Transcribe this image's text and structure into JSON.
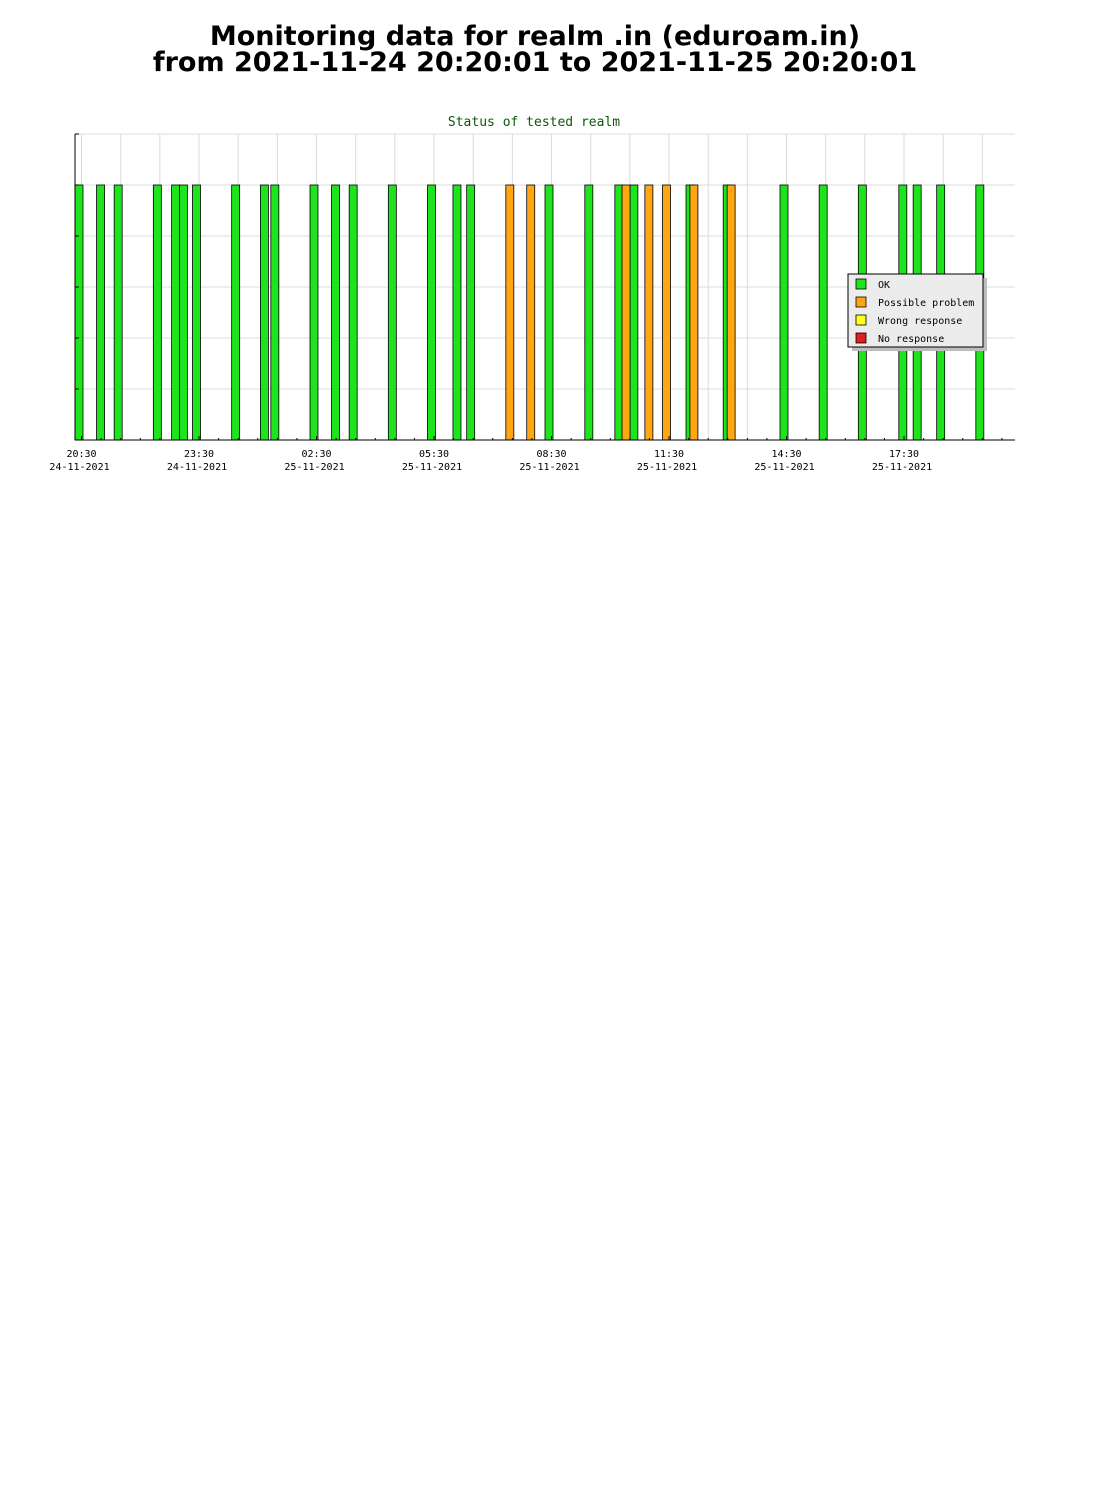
{
  "header": {
    "line1": "Monitoring data for realm .in  (eduroam.in)",
    "line2": "from 2021-11-24 20:20:01 to 2021-11-25 20:20:01"
  },
  "chart_data": {
    "type": "bar",
    "title": "Status of tested realm",
    "xlabel": "",
    "ylabel": "",
    "x_range": [
      "2021-11-24 20:20",
      "2021-11-25 20:20"
    ],
    "ylim": [
      0,
      6
    ],
    "grid": true,
    "legend_position": "right",
    "colors": {
      "OK": "#1ee41e",
      "Possible problem": "#ffa614",
      "Wrong response": "#ffff1e",
      "No response": "#e01e1e",
      "title": "#0a5a0a"
    },
    "x_ticks": [
      {
        "time": "20:30",
        "date": "24-11-2021"
      },
      {
        "time": "23:30",
        "date": "24-11-2021"
      },
      {
        "time": "02:30",
        "date": "25-11-2021"
      },
      {
        "time": "05:30",
        "date": "25-11-2021"
      },
      {
        "time": "08:30",
        "date": "25-11-2021"
      },
      {
        "time": "11:30",
        "date": "25-11-2021"
      },
      {
        "time": "14:30",
        "date": "25-11-2021"
      },
      {
        "time": "17:30",
        "date": "25-11-2021"
      }
    ],
    "legend": [
      "OK",
      "Possible problem",
      "Wrong response",
      "No response"
    ],
    "series": [
      {
        "name": "OK",
        "color": "#1ee41e",
        "y": 5,
        "x": [
          "20:20",
          "20:53",
          "21:20",
          "22:20",
          "22:48",
          "23:00",
          "23:20",
          "00:20",
          "01:04",
          "01:20",
          "02:20",
          "02:53",
          "03:20",
          "04:20",
          "05:20",
          "05:59",
          "06:20",
          "08:20",
          "09:21",
          "10:07",
          "10:30",
          "11:56",
          "12:53",
          "14:20",
          "15:20",
          "16:20",
          "17:22",
          "17:44",
          "18:20",
          "19:20"
        ]
      },
      {
        "name": "Possible problem",
        "color": "#ffa614",
        "y": 5,
        "x": [
          "07:20",
          "07:52",
          "10:18",
          "10:53",
          "11:20",
          "12:02",
          "12:59"
        ]
      }
    ]
  }
}
